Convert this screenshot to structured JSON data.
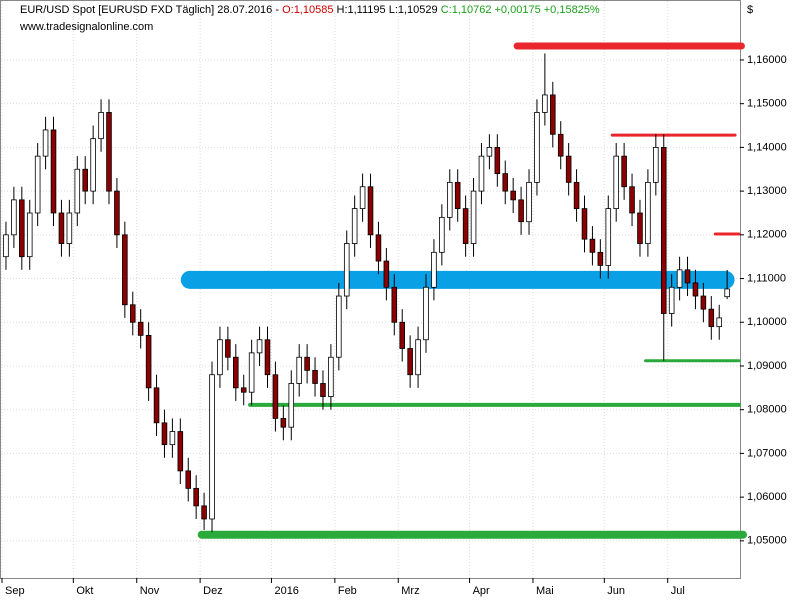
{
  "chart_data": {
    "type": "candlestick",
    "title": {
      "parts": [
        {
          "text": "EUR/USD Spot [EURUSD FXD  Täglich] 28.07.2016 - ",
          "color": "#000000"
        },
        {
          "text": "O:1,10585",
          "color": "#d00000"
        },
        {
          "text": " H:1,11195 L:1,10529 ",
          "color": "#000000"
        },
        {
          "text": "C:1,10762 +0,00175 +0,15825%",
          "color": "#1aa01a"
        }
      ]
    },
    "watermark": "www.tradesignalonline.com",
    "y_axis_label": "$",
    "categories": [
      "Sep",
      null,
      null,
      null,
      null,
      null,
      null,
      null,
      null,
      "Okt",
      null,
      null,
      null,
      null,
      null,
      null,
      null,
      "Nov",
      null,
      null,
      null,
      null,
      null,
      null,
      null,
      "Dez",
      null,
      null,
      null,
      null,
      null,
      null,
      null,
      null,
      "2016",
      null,
      null,
      null,
      null,
      null,
      null,
      null,
      "Feb",
      null,
      null,
      null,
      null,
      null,
      null,
      null,
      "Mrz",
      null,
      null,
      null,
      null,
      null,
      null,
      null,
      null,
      "Apr",
      null,
      null,
      null,
      null,
      null,
      null,
      null,
      "Mai",
      null,
      null,
      null,
      null,
      null,
      null,
      null,
      null,
      "Jun",
      null,
      null,
      null,
      null,
      null,
      null,
      null,
      "Jul",
      null,
      null,
      null,
      null,
      null,
      null,
      null
    ],
    "xlim": [
      0,
      93.5
    ],
    "open": [
      1.115,
      1.12,
      1.128,
      1.115,
      1.125,
      1.138,
      1.144,
      1.125,
      1.118,
      1.125,
      1.135,
      1.13,
      1.142,
      1.148,
      1.13,
      1.12,
      1.104,
      1.1,
      1.097,
      1.085,
      1.077,
      1.072,
      1.075,
      1.066,
      1.062,
      1.058,
      1.055,
      1.088,
      1.096,
      1.092,
      1.085,
      1.084,
      1.093,
      1.096,
      1.088,
      1.078,
      1.076,
      1.086,
      1.092,
      1.089,
      1.086,
      1.083,
      1.092,
      1.106,
      1.118,
      1.126,
      1.131,
      1.12,
      1.114,
      1.108,
      1.1,
      1.094,
      1.088,
      1.096,
      1.108,
      1.116,
      1.124,
      1.132,
      1.126,
      1.118,
      1.13,
      1.138,
      1.14,
      1.134,
      1.13,
      1.128,
      1.123,
      1.132,
      1.148,
      1.152,
      1.143,
      1.138,
      1.132,
      1.126,
      1.119,
      1.116,
      1.113,
      1.126,
      1.138,
      1.131,
      1.125,
      1.118,
      1.132,
      1.14,
      1.102,
      1.108,
      1.112,
      1.109,
      1.106,
      1.103,
      1.099,
      1.10585
    ],
    "high": [
      1.123,
      1.131,
      1.131,
      1.128,
      1.141,
      1.147,
      1.147,
      1.128,
      1.128,
      1.138,
      1.138,
      1.145,
      1.151,
      1.151,
      1.133,
      1.123,
      1.107,
      1.103,
      1.1,
      1.088,
      1.08,
      1.078,
      1.078,
      1.069,
      1.065,
      1.061,
      1.091,
      1.099,
      1.099,
      1.095,
      1.088,
      1.096,
      1.099,
      1.099,
      1.091,
      1.081,
      1.089,
      1.095,
      1.095,
      1.092,
      1.089,
      1.095,
      1.109,
      1.121,
      1.129,
      1.134,
      1.134,
      1.123,
      1.117,
      1.111,
      1.103,
      1.097,
      1.099,
      1.111,
      1.119,
      1.127,
      1.135,
      1.135,
      1.129,
      1.133,
      1.141,
      1.143,
      1.143,
      1.137,
      1.133,
      1.131,
      1.135,
      1.151,
      1.1615,
      1.155,
      1.146,
      1.141,
      1.135,
      1.129,
      1.122,
      1.119,
      1.129,
      1.141,
      1.141,
      1.134,
      1.128,
      1.135,
      1.143,
      1.143,
      1.111,
      1.115,
      1.115,
      1.112,
      1.109,
      1.106,
      1.104,
      1.11195
    ],
    "low": [
      1.112,
      1.117,
      1.112,
      1.112,
      1.122,
      1.135,
      1.122,
      1.115,
      1.115,
      1.122,
      1.127,
      1.127,
      1.139,
      1.127,
      1.117,
      1.101,
      1.097,
      1.094,
      1.082,
      1.074,
      1.069,
      1.069,
      1.063,
      1.059,
      1.055,
      1.0525,
      1.052,
      1.085,
      1.089,
      1.082,
      1.081,
      1.081,
      1.09,
      1.085,
      1.075,
      1.073,
      1.073,
      1.083,
      1.086,
      1.083,
      1.08,
      1.08,
      1.089,
      1.103,
      1.115,
      1.123,
      1.117,
      1.111,
      1.105,
      1.097,
      1.091,
      1.085,
      1.085,
      1.093,
      1.105,
      1.113,
      1.121,
      1.123,
      1.115,
      1.115,
      1.127,
      1.135,
      1.131,
      1.127,
      1.125,
      1.12,
      1.12,
      1.129,
      1.145,
      1.14,
      1.135,
      1.129,
      1.123,
      1.116,
      1.113,
      1.11,
      1.11,
      1.123,
      1.128,
      1.122,
      1.115,
      1.115,
      1.129,
      1.0912,
      1.099,
      1.105,
      1.106,
      1.103,
      1.1,
      1.096,
      1.096,
      1.10529
    ],
    "close": [
      1.12,
      1.128,
      1.115,
      1.125,
      1.138,
      1.144,
      1.125,
      1.118,
      1.125,
      1.135,
      1.13,
      1.142,
      1.148,
      1.13,
      1.12,
      1.104,
      1.1,
      1.097,
      1.085,
      1.077,
      1.072,
      1.075,
      1.066,
      1.062,
      1.058,
      1.055,
      1.088,
      1.096,
      1.092,
      1.085,
      1.084,
      1.093,
      1.096,
      1.088,
      1.078,
      1.076,
      1.086,
      1.092,
      1.089,
      1.086,
      1.083,
      1.092,
      1.106,
      1.118,
      1.126,
      1.131,
      1.12,
      1.114,
      1.108,
      1.1,
      1.094,
      1.088,
      1.096,
      1.108,
      1.116,
      1.124,
      1.132,
      1.126,
      1.118,
      1.13,
      1.138,
      1.14,
      1.134,
      1.13,
      1.128,
      1.123,
      1.132,
      1.148,
      1.152,
      1.143,
      1.138,
      1.132,
      1.126,
      1.119,
      1.116,
      1.113,
      1.126,
      1.138,
      1.131,
      1.125,
      1.118,
      1.132,
      1.14,
      1.102,
      1.108,
      1.112,
      1.109,
      1.106,
      1.103,
      1.099,
      1.101,
      1.10762
    ],
    "up_color": "#ffffff",
    "down_color": "#8b0000",
    "ylim": [
      1.0415,
      1.1696
    ],
    "yticks": [
      {
        "value": 1.05,
        "label": "1,05000"
      },
      {
        "value": 1.06,
        "label": "1,06000"
      },
      {
        "value": 1.07,
        "label": "1,07000"
      },
      {
        "value": 1.08,
        "label": "1,08000"
      },
      {
        "value": 1.09,
        "label": "1,09000"
      },
      {
        "value": 1.1,
        "label": "1,10000"
      },
      {
        "value": 1.11,
        "label": "1,11000"
      },
      {
        "value": 1.12,
        "label": "1,12000"
      },
      {
        "value": 1.13,
        "label": "1,13000"
      },
      {
        "value": 1.14,
        "label": "1,14000"
      },
      {
        "value": 1.15,
        "label": "1,15000"
      },
      {
        "value": 1.16,
        "label": "1,16000"
      }
    ],
    "grid": true,
    "levels": [
      {
        "value": 1.1632,
        "from": 65,
        "to": 93.3,
        "color": "#e8262b"
      },
      {
        "value": 1.1428,
        "from": 77,
        "to": 92.5,
        "color": "#e8262b"
      },
      {
        "value": 1.1202,
        "from": 90,
        "to": 93,
        "color": "#e8262b"
      },
      {
        "value": 1.1097,
        "from": 23.7,
        "to": 91.3,
        "color": "#0aa0e6"
      },
      {
        "value": 1.0912,
        "from": 81.2,
        "to": 93,
        "color": "#2aaa3a"
      },
      {
        "value": 1.0811,
        "from": 31.3,
        "to": 93,
        "color": "#2aaa3a"
      },
      {
        "value": 1.0514,
        "from": 25.2,
        "to": 93.5,
        "color": "#2aaa3a"
      }
    ]
  }
}
